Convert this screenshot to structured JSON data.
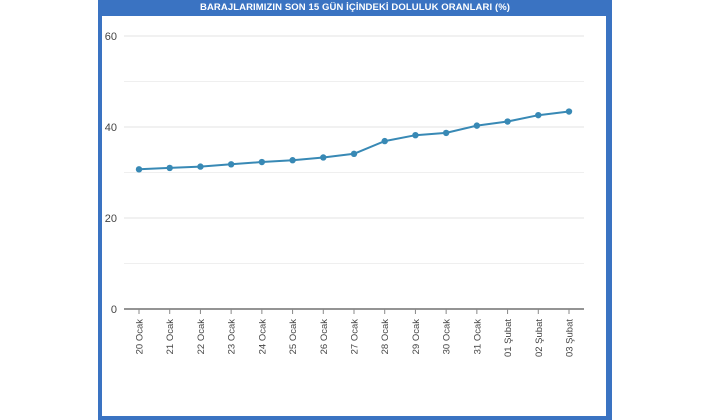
{
  "chart_data": {
    "type": "line",
    "title": "BARAJLARIMIZIN SON 15 GÜN İÇİNDEKİ DOLULUK ORANLARI (%)",
    "xlabel": "",
    "ylabel": "",
    "categories": [
      "20 Ocak",
      "21 Ocak",
      "22 Ocak",
      "23 Ocak",
      "24 Ocak",
      "25 Ocak",
      "26 Ocak",
      "27 Ocak",
      "28 Ocak",
      "29 Ocak",
      "30 Ocak",
      "31 Ocak",
      "01 Şubat",
      "02 Şubat",
      "03 Şubat"
    ],
    "values": [
      30.7,
      31.0,
      31.3,
      31.8,
      32.3,
      32.7,
      33.3,
      34.1,
      36.9,
      38.2,
      38.7,
      40.3,
      41.2,
      42.6,
      43.4
    ],
    "ylim": [
      0,
      60
    ],
    "yticks": [
      0,
      20,
      40,
      60
    ],
    "grid": true,
    "legend": "none",
    "colors": {
      "background": "#3a73c2",
      "plot_background": "#ffffff",
      "line": "#3889b5",
      "grid": "#e3e3e3",
      "title_text": "#ffffff"
    }
  }
}
